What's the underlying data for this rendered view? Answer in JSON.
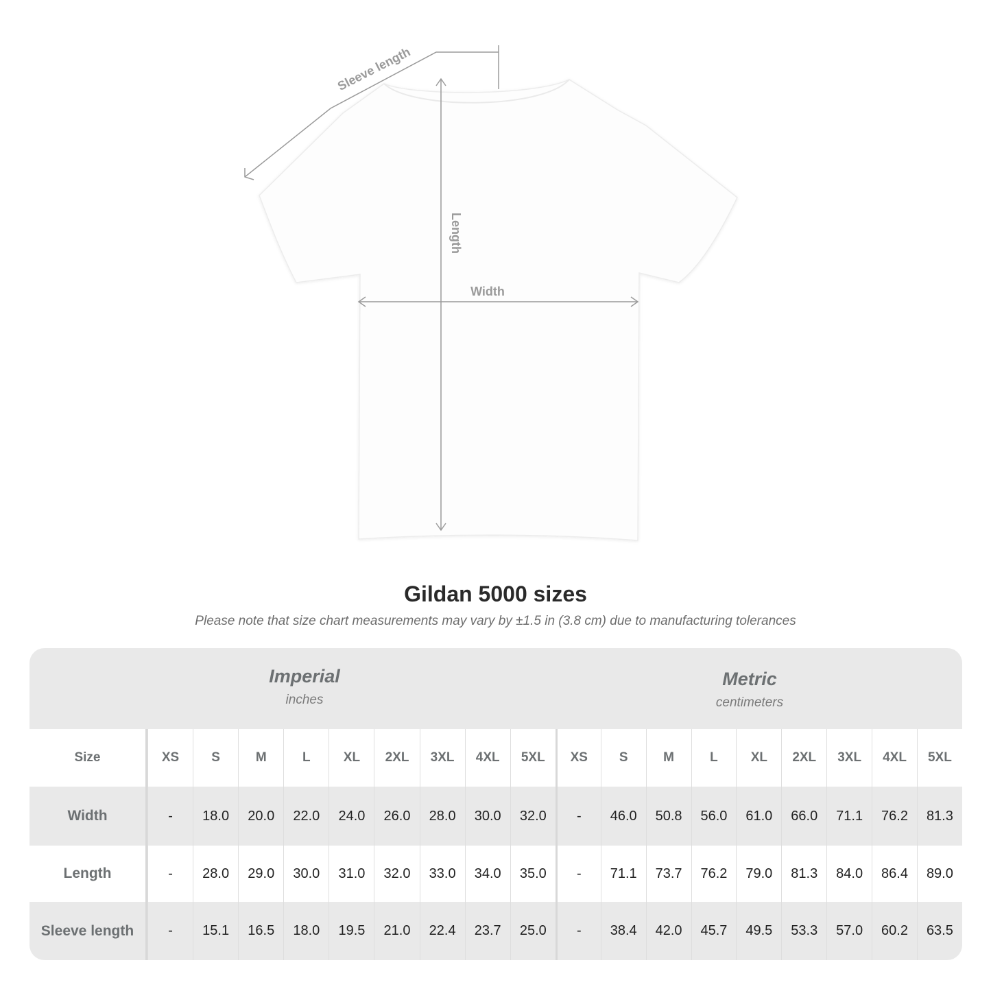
{
  "diagram": {
    "sleeve_label": "Sleeve length",
    "length_label": "Length",
    "width_label": "Width",
    "line_color": "#9a9a9a"
  },
  "title": "Gildan 5000 sizes",
  "note": "Please note that size chart measurements may vary by ±1.5 in (3.8 cm) due to manufacturing tolerances",
  "table": {
    "imperial": {
      "name": "Imperial",
      "unit": "inches"
    },
    "metric": {
      "name": "Metric",
      "unit": "centimeters"
    },
    "size_label": "Size",
    "sizes": [
      "XS",
      "S",
      "M",
      "L",
      "XL",
      "2XL",
      "3XL",
      "4XL",
      "5XL"
    ],
    "rows": [
      {
        "label": "Width",
        "imperial": [
          "-",
          "18.0",
          "20.0",
          "22.0",
          "24.0",
          "26.0",
          "28.0",
          "30.0",
          "32.0"
        ],
        "metric": [
          "-",
          "46.0",
          "50.8",
          "56.0",
          "61.0",
          "66.0",
          "71.1",
          "76.2",
          "81.3"
        ]
      },
      {
        "label": "Length",
        "imperial": [
          "-",
          "28.0",
          "29.0",
          "30.0",
          "31.0",
          "32.0",
          "33.0",
          "34.0",
          "35.0"
        ],
        "metric": [
          "-",
          "71.1",
          "73.7",
          "76.2",
          "79.0",
          "81.3",
          "84.0",
          "86.4",
          "89.0"
        ]
      },
      {
        "label": "Sleeve length",
        "imperial": [
          "-",
          "15.1",
          "16.5",
          "18.0",
          "19.5",
          "21.0",
          "22.4",
          "23.7",
          "25.0"
        ],
        "metric": [
          "-",
          "38.4",
          "42.0",
          "45.7",
          "49.5",
          "53.3",
          "57.0",
          "60.2",
          "63.5"
        ]
      }
    ],
    "band_color": "#e9e9e9"
  }
}
